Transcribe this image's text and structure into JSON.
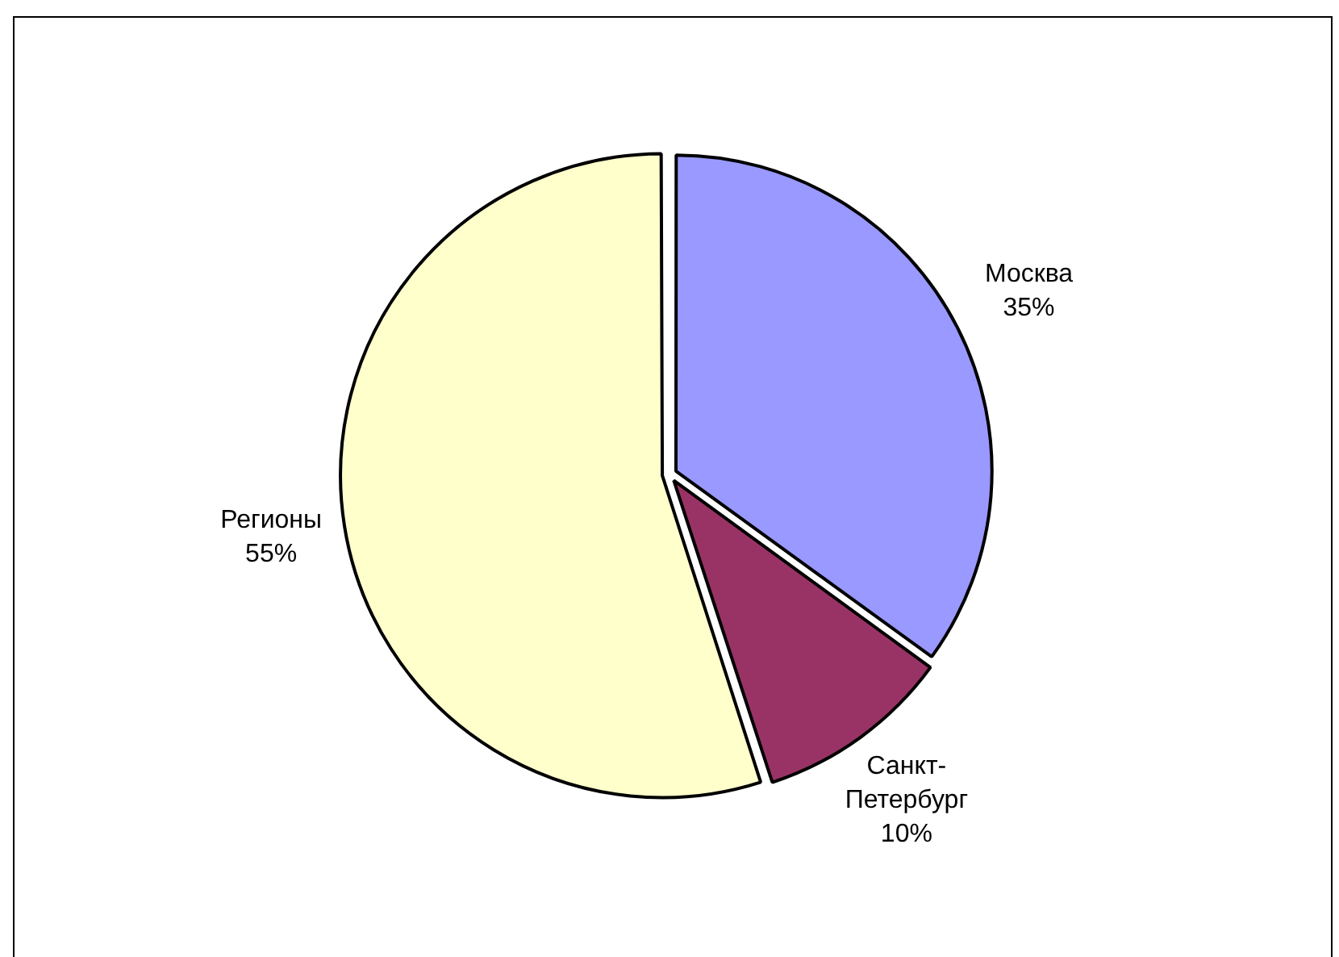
{
  "chart_data": {
    "type": "pie",
    "categories": [
      "Москва",
      "Санкт-Петербург",
      "Регионы"
    ],
    "values": [
      35,
      10,
      55
    ],
    "colors": [
      "#9999ff",
      "#993366",
      "#ffffcc"
    ],
    "value_labels": [
      "35%",
      "10%",
      "55%"
    ]
  }
}
